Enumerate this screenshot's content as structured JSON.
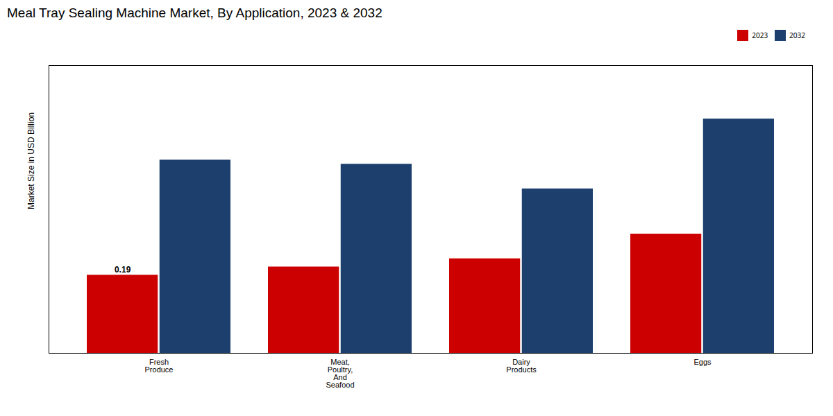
{
  "chart_data": {
    "type": "bar",
    "title": "Meal Tray Sealing Machine Market, By Application, 2023 & 2032",
    "ylabel": "Market Size in USD Billion",
    "categories": [
      "Fresh\nProduce",
      "Meat,\nPoultry,\nAnd\nSeafood",
      "Dairy\nProducts",
      "Eggs"
    ],
    "series": [
      {
        "name": "2023",
        "color": "#cc0000",
        "values": [
          0.19,
          0.21,
          0.23,
          0.29
        ]
      },
      {
        "name": "2032",
        "color": "#1c3f6e",
        "values": [
          0.47,
          0.46,
          0.4,
          0.57
        ]
      }
    ],
    "ylim": [
      0,
      0.7
    ],
    "tick_labels": "x",
    "grid": false,
    "legend": "upper right",
    "annotations": [
      {
        "text": "0.19",
        "category": "Fresh\nProduce",
        "series": "2023",
        "y": 0.19
      }
    ]
  }
}
